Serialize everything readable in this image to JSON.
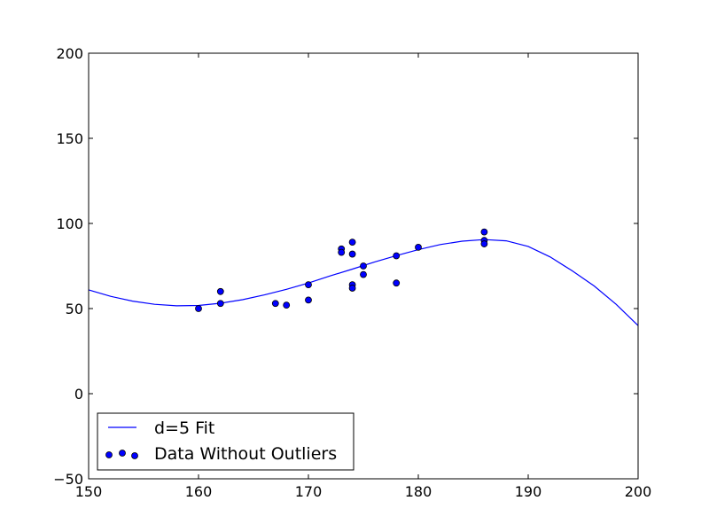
{
  "chart_data": {
    "type": "scatter",
    "title": "",
    "xlabel": "",
    "ylabel": "",
    "xlim": [
      150,
      200
    ],
    "ylim": [
      -50,
      200
    ],
    "grid": false,
    "xticks": [
      150,
      160,
      170,
      180,
      190,
      200
    ],
    "yticks": [
      -50,
      0,
      50,
      100,
      150,
      200
    ],
    "xtick_labels": [
      "150",
      "160",
      "170",
      "180",
      "190",
      "200"
    ],
    "ytick_labels": [
      "−50",
      "0",
      "50",
      "100",
      "150",
      "200"
    ],
    "legend_position": "lower-left",
    "series": [
      {
        "name": "d=5 Fit",
        "kind": "line",
        "color": "#0000ff",
        "x": [
          150,
          152,
          154,
          156,
          158,
          160,
          162,
          164,
          166,
          168,
          170,
          172,
          174,
          176,
          178,
          180,
          182,
          184,
          186,
          188,
          190,
          192,
          194,
          196,
          198,
          200
        ],
        "y": [
          61,
          57.2,
          54.4,
          52.5,
          51.6,
          51.8,
          53.1,
          55.2,
          58,
          61.3,
          65,
          69.2,
          73.2,
          77.3,
          81.1,
          84.6,
          87.6,
          89.6,
          90.5,
          89.8,
          86.5,
          80.3,
          72.2,
          63.3,
          52.5,
          40
        ]
      },
      {
        "name": "Data Without Outliers",
        "kind": "scatter",
        "color": "#0000ff",
        "edge_color": "#000000",
        "x": [
          160,
          162,
          162,
          167,
          168,
          170,
          170,
          173,
          173,
          174,
          174,
          174,
          174,
          175,
          175,
          178,
          178,
          180,
          186,
          186,
          186
        ],
        "y": [
          50,
          60,
          53,
          53,
          52,
          64,
          55,
          85,
          83,
          89,
          82,
          64,
          62,
          75,
          70,
          81,
          65,
          86,
          95,
          90,
          88
        ]
      }
    ]
  }
}
